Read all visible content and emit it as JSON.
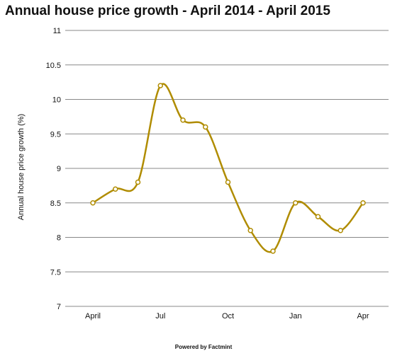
{
  "chart_data": {
    "type": "line",
    "title": "Annual house price growth - April 2014 - April 2015",
    "ylabel": "Annual house price growth (%)",
    "xlabel": "",
    "ylim": [
      7,
      11
    ],
    "yticks": [
      7,
      7.5,
      8,
      8.5,
      9,
      9.5,
      10,
      10.5,
      11
    ],
    "ytick_labels": [
      "7",
      "7.5",
      "8",
      "8.5",
      "9",
      "9.5",
      "10",
      "10.5",
      "11"
    ],
    "x_labels": [
      "April",
      "Jul",
      "Oct",
      "Jan",
      "Apr"
    ],
    "x_label_positions": [
      0,
      3,
      6,
      9,
      12
    ],
    "grid": true,
    "series": [
      {
        "x": [
          0,
          1,
          2,
          3,
          4,
          5,
          6,
          7,
          8,
          9,
          10,
          11,
          12
        ],
        "values": [
          8.5,
          8.7,
          8.8,
          10.2,
          9.7,
          9.6,
          8.8,
          8.1,
          7.8,
          8.5,
          8.3,
          8.1,
          8.5
        ]
      }
    ],
    "colors": {
      "line": "#b08c00",
      "marker_fill": "#ffffff",
      "grid": "#888888"
    }
  },
  "footer": "Powered by Factmint"
}
